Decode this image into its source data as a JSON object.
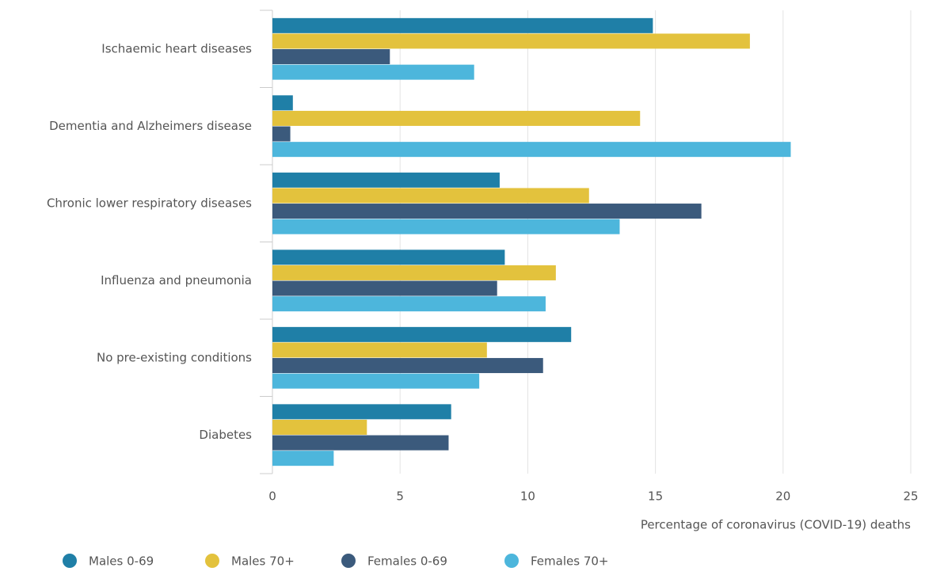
{
  "chart_data": {
    "type": "bar",
    "orientation": "horizontal",
    "categories": [
      "Ischaemic heart diseases",
      "Dementia and Alzheimers disease",
      "Chronic lower respiratory diseases",
      "Influenza and pneumonia",
      "No pre-existing conditions",
      "Diabetes"
    ],
    "series": [
      {
        "name": "Males 0-69",
        "color": "#1f7fa7",
        "values": [
          14.9,
          0.8,
          8.9,
          9.1,
          11.7,
          7.0
        ]
      },
      {
        "name": "Males 70+",
        "color": "#e3c23d",
        "values": [
          18.7,
          14.4,
          12.4,
          11.1,
          8.4,
          3.7
        ]
      },
      {
        "name": "Females 0-69",
        "color": "#3b5a7c",
        "values": [
          4.6,
          0.7,
          16.8,
          8.8,
          10.6,
          6.9
        ]
      },
      {
        "name": "Females 70+",
        "color": "#4db6dc",
        "values": [
          7.9,
          20.3,
          13.6,
          10.7,
          8.1,
          2.4
        ]
      }
    ],
    "xlim": [
      0,
      25
    ],
    "xticks": [
      0,
      5,
      10,
      15,
      20,
      25
    ],
    "x_label": "Percentage of coronavirus (COVID-19) deaths",
    "grid": true,
    "legend": "bottom"
  }
}
